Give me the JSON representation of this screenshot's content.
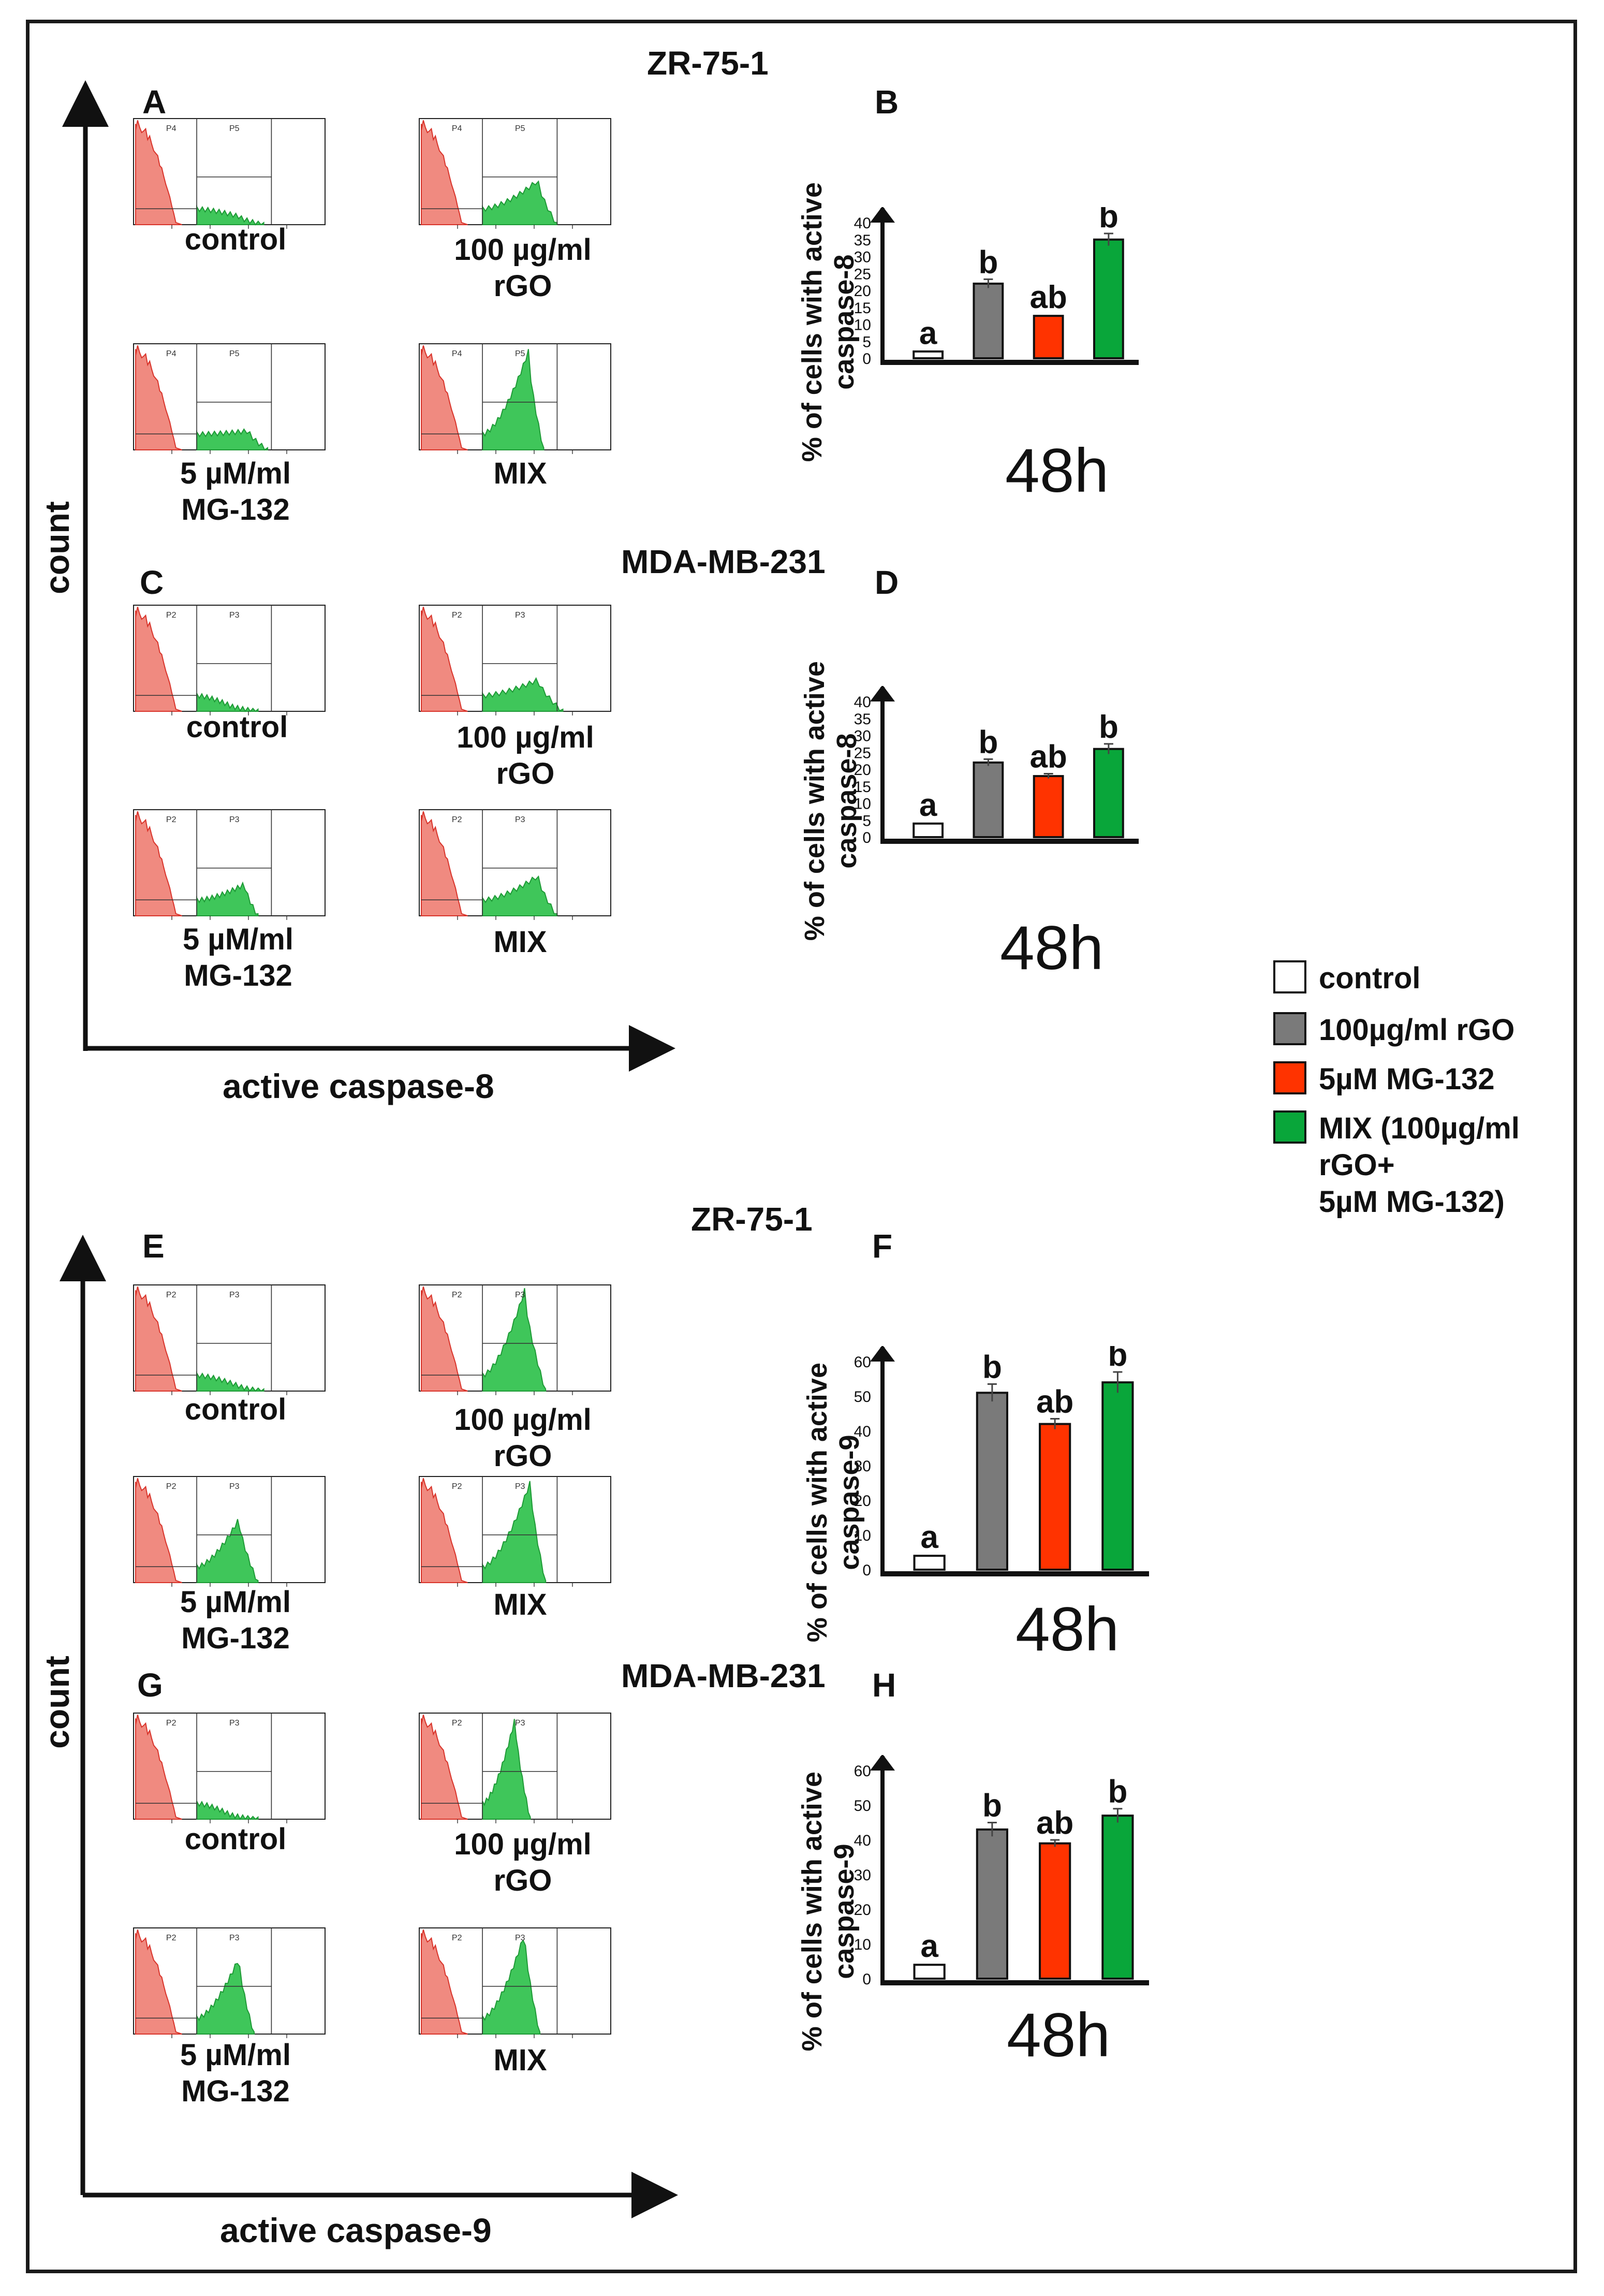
{
  "panels": {
    "A": "A",
    "B": "B",
    "C": "C",
    "D": "D",
    "E": "E",
    "F": "F",
    "G": "G",
    "H": "H"
  },
  "titles": {
    "zr_top": "ZR-75-1",
    "mda_top": "MDA-MB-231",
    "zr_bottom": "ZR-75-1",
    "mda_bottom": "MDA-MB-231"
  },
  "axes": {
    "count": "count",
    "x_casp8": "active caspase-8",
    "x_casp9": "active caspase-9"
  },
  "captions": {
    "control": "control",
    "rgo_line1": "100 µg/ml",
    "rgo_line2": "rGO",
    "mg_line1": "5 µM/ml",
    "mg_line2": "MG-132",
    "mix": "MIX"
  },
  "gates": {
    "a_first": "P4",
    "a_second": "P5",
    "other_first": "P2",
    "other_second": "P3"
  },
  "legend": {
    "control": "control",
    "rgo": "100µg/ml rGO",
    "mg": "5µM MG-132",
    "mix_line1": "MIX (100µg/ml",
    "mix_line2": "rGO+",
    "mix_line3": "5µM MG-132)",
    "colors": {
      "control": "#ffffff",
      "rgo": "#7a7a7a",
      "mg": "#ff3300",
      "mix": "#09a63a"
    }
  },
  "chart_data": [
    {
      "panel": "B",
      "type": "bar",
      "cell_line": "ZR-75-1",
      "categories": [
        "control",
        "100µg/ml rGO",
        "5µM MG-132",
        "MIX"
      ],
      "values": [
        2,
        22,
        12.5,
        35
      ],
      "errors": [
        0.4,
        1.3,
        0.5,
        1.8
      ],
      "significance": [
        "a",
        "b",
        "ab",
        "b"
      ],
      "ylabel_line1": "% of cells with active",
      "ylabel_line2": "caspase-8",
      "xlabel": "48h",
      "ylim": [
        0,
        40
      ],
      "yticks": [
        0,
        5,
        10,
        15,
        20,
        25,
        30,
        35,
        40
      ]
    },
    {
      "panel": "D",
      "type": "bar",
      "cell_line": "MDA-MB-231",
      "categories": [
        "control",
        "100µg/ml rGO",
        "5µM MG-132",
        "MIX"
      ],
      "values": [
        4,
        22,
        18,
        26
      ],
      "errors": [
        0.4,
        1.0,
        0.7,
        1.5
      ],
      "significance": [
        "a",
        "b",
        "ab",
        "b"
      ],
      "ylabel_line1": "% of cells with active",
      "ylabel_line2": "caspase-8",
      "xlabel": "48h",
      "ylim": [
        0,
        40
      ],
      "yticks": [
        0,
        5,
        10,
        15,
        20,
        25,
        30,
        35,
        40
      ]
    },
    {
      "panel": "F",
      "type": "bar",
      "cell_line": "ZR-75-1",
      "categories": [
        "control",
        "100µg/ml rGO",
        "5µM MG-132",
        "MIX"
      ],
      "values": [
        4,
        51,
        42,
        54
      ],
      "errors": [
        0.5,
        2.5,
        1.5,
        3.0
      ],
      "significance": [
        "a",
        "b",
        "ab",
        "b"
      ],
      "ylabel_line1": "% of cells with active",
      "ylabel_line2": "caspase-9",
      "xlabel": "48h",
      "ylim": [
        0,
        60
      ],
      "yticks": [
        0,
        10,
        20,
        30,
        40,
        50,
        60
      ]
    },
    {
      "panel": "H",
      "type": "bar",
      "cell_line": "MDA-MB-231",
      "categories": [
        "control",
        "100µg/ml rGO",
        "5µM MG-132",
        "MIX"
      ],
      "values": [
        4,
        43,
        39,
        47
      ],
      "errors": [
        0.5,
        2.0,
        1.0,
        2.0
      ],
      "significance": [
        "a",
        "b",
        "ab",
        "b"
      ],
      "ylabel_line1": "% of cells with active",
      "ylabel_line2": "caspase-9",
      "xlabel": "48h",
      "ylim": [
        0,
        60
      ],
      "yticks": [
        0,
        10,
        20,
        30,
        40,
        50,
        60
      ]
    }
  ]
}
